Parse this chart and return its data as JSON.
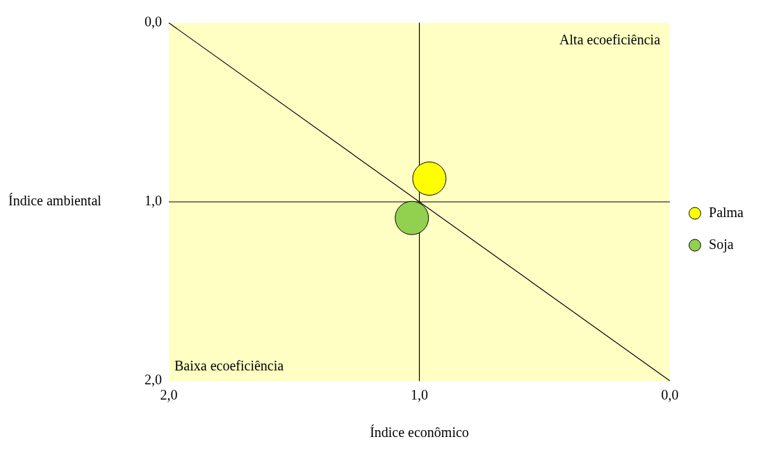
{
  "chart_data": {
    "type": "bubble",
    "xlabel": "Índice econômico",
    "ylabel": "Índice ambiental",
    "xlim": [
      2,
      0
    ],
    "ylim": [
      2,
      0
    ],
    "xticks": [
      {
        "value": 2,
        "label": "2,0"
      },
      {
        "value": 1,
        "label": "1,0"
      },
      {
        "value": 0,
        "label": "0,0"
      }
    ],
    "yticks": [
      {
        "value": 0,
        "label": "0,0"
      },
      {
        "value": 1,
        "label": "1,0"
      },
      {
        "value": 2,
        "label": "2,0"
      }
    ],
    "series": [
      {
        "name": "Palma",
        "color": "#ffff00",
        "x": [
          0.96
        ],
        "values": [
          0.87
        ],
        "sizes": [
          1
        ],
        "marker": "circle"
      },
      {
        "name": "Soja",
        "color": "#92d050",
        "x": [
          1.03
        ],
        "values": [
          1.09
        ],
        "sizes": [
          1
        ],
        "marker": "circle"
      },
      {
        "type": "line",
        "color": "#000000",
        "x": [
          2,
          0
        ],
        "values": [
          0,
          2
        ]
      },
      {
        "type": "line",
        "color": "#000000",
        "x": [
          1,
          1
        ],
        "values": [
          0,
          2
        ]
      },
      {
        "type": "line",
        "color": "#000000",
        "x": [
          2,
          0
        ],
        "values": [
          1,
          1
        ]
      }
    ],
    "annotations": [
      "Alta ecoeficiência",
      "Baixa ecoeficiência"
    ],
    "grid": false,
    "legend": "right"
  }
}
